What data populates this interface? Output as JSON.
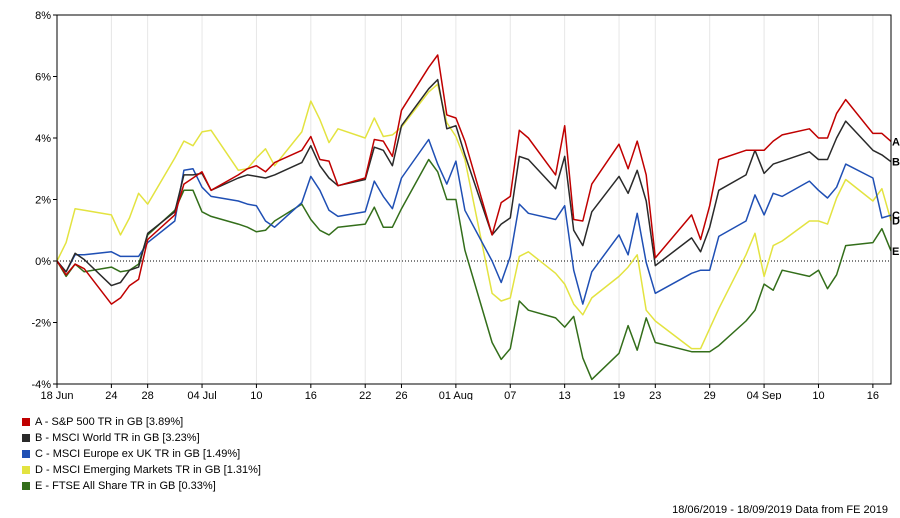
{
  "chart_data": {
    "type": "line",
    "ylim": [
      -4,
      8
    ],
    "yticks": [
      -4,
      -2,
      0,
      2,
      4,
      6,
      8
    ],
    "ytick_labels": [
      "-4%",
      "-2%",
      "0%",
      "2%",
      "4%",
      "6%",
      "8%"
    ],
    "xlim": [
      "2019-06-18",
      "2019-09-18"
    ],
    "xticks": [
      {
        "date": "2019-06-18",
        "label": "18 Jun"
      },
      {
        "date": "2019-06-24",
        "label": "24"
      },
      {
        "date": "2019-06-28",
        "label": "28"
      },
      {
        "date": "2019-07-04",
        "label": "04 Jul"
      },
      {
        "date": "2019-07-10",
        "label": "10"
      },
      {
        "date": "2019-07-16",
        "label": "16"
      },
      {
        "date": "2019-07-22",
        "label": "22"
      },
      {
        "date": "2019-07-26",
        "label": "26"
      },
      {
        "date": "2019-08-01",
        "label": "01 Aug"
      },
      {
        "date": "2019-08-07",
        "label": "07"
      },
      {
        "date": "2019-08-13",
        "label": "13"
      },
      {
        "date": "2019-08-19",
        "label": "19"
      },
      {
        "date": "2019-08-23",
        "label": "23"
      },
      {
        "date": "2019-08-29",
        "label": "29"
      },
      {
        "date": "2019-09-04",
        "label": "04 Sep"
      },
      {
        "date": "2019-09-10",
        "label": "10"
      },
      {
        "date": "2019-09-16",
        "label": "16"
      }
    ],
    "zero_line": "dotted",
    "dates": [
      "2019-06-18",
      "2019-06-19",
      "2019-06-20",
      "2019-06-21",
      "2019-06-24",
      "2019-06-25",
      "2019-06-26",
      "2019-06-27",
      "2019-06-28",
      "2019-07-01",
      "2019-07-02",
      "2019-07-03",
      "2019-07-04",
      "2019-07-05",
      "2019-07-08",
      "2019-07-09",
      "2019-07-10",
      "2019-07-11",
      "2019-07-12",
      "2019-07-15",
      "2019-07-16",
      "2019-07-17",
      "2019-07-18",
      "2019-07-19",
      "2019-07-22",
      "2019-07-23",
      "2019-07-24",
      "2019-07-25",
      "2019-07-26",
      "2019-07-29",
      "2019-07-30",
      "2019-07-31",
      "2019-08-01",
      "2019-08-02",
      "2019-08-05",
      "2019-08-06",
      "2019-08-07",
      "2019-08-08",
      "2019-08-09",
      "2019-08-12",
      "2019-08-13",
      "2019-08-14",
      "2019-08-15",
      "2019-08-16",
      "2019-08-19",
      "2019-08-20",
      "2019-08-21",
      "2019-08-22",
      "2019-08-23",
      "2019-08-27",
      "2019-08-28",
      "2019-08-29",
      "2019-08-30",
      "2019-09-02",
      "2019-09-03",
      "2019-09-04",
      "2019-09-05",
      "2019-09-06",
      "2019-09-09",
      "2019-09-10",
      "2019-09-11",
      "2019-09-12",
      "2019-09-13",
      "2019-09-16",
      "2019-09-17",
      "2019-09-18"
    ],
    "series": [
      {
        "name": "S&P 500 TR in GB",
        "letter": "A",
        "final": "3.89%",
        "color": "#c00000",
        "values": [
          0,
          -0.45,
          -0.1,
          -0.25,
          -1.4,
          -1.2,
          -0.8,
          -0.6,
          0.7,
          1.5,
          2.5,
          2.7,
          2.9,
          2.3,
          2.8,
          3.0,
          3.1,
          2.9,
          3.2,
          3.6,
          4.05,
          3.3,
          3.25,
          2.45,
          2.7,
          3.95,
          3.9,
          3.4,
          4.9,
          6.3,
          6.7,
          4.75,
          4.65,
          3.9,
          0.85,
          1.9,
          2.1,
          4.25,
          4.0,
          2.8,
          4.4,
          1.35,
          1.3,
          2.5,
          3.8,
          3.0,
          3.9,
          2.8,
          0.1,
          1.5,
          0.7,
          1.8,
          3.3,
          3.6,
          3.6,
          3.6,
          3.9,
          4.1,
          4.3,
          4.0,
          4.0,
          4.8,
          5.25,
          4.15,
          4.15,
          3.89
        ]
      },
      {
        "name": "MSCI World TR in GB",
        "letter": "B",
        "final": "3.23%",
        "color": "#2a2a2a",
        "values": [
          0,
          -0.35,
          0.25,
          0.05,
          -0.8,
          -0.7,
          -0.3,
          -0.2,
          0.9,
          1.6,
          2.8,
          2.8,
          2.85,
          2.3,
          2.7,
          2.8,
          2.75,
          2.7,
          2.8,
          3.2,
          3.75,
          3.1,
          2.7,
          2.45,
          2.65,
          3.7,
          3.6,
          3.1,
          4.4,
          5.6,
          5.9,
          4.3,
          4.4,
          3.45,
          0.85,
          1.2,
          1.4,
          3.4,
          3.3,
          2.35,
          3.4,
          1.0,
          0.5,
          1.6,
          2.75,
          2.2,
          2.95,
          1.95,
          -0.15,
          0.75,
          0.3,
          1.1,
          2.3,
          2.8,
          3.6,
          2.85,
          3.15,
          3.25,
          3.55,
          3.3,
          3.3,
          4.0,
          4.55,
          3.6,
          3.45,
          3.23
        ]
      },
      {
        "name": "MSCI Europe ex UK TR in GB",
        "letter": "C",
        "final": "1.49%",
        "color": "#1f4fb4",
        "values": [
          0,
          -0.35,
          0.2,
          0.2,
          0.3,
          0.15,
          0.15,
          0.15,
          0.6,
          1.3,
          2.95,
          3.0,
          2.4,
          2.1,
          1.95,
          1.85,
          1.8,
          1.3,
          1.1,
          1.9,
          2.75,
          2.3,
          1.65,
          1.45,
          1.6,
          2.6,
          2.1,
          1.7,
          2.7,
          3.95,
          3.15,
          2.5,
          3.25,
          1.65,
          0.0,
          -0.7,
          0.15,
          1.85,
          1.55,
          1.35,
          1.8,
          -0.3,
          -1.4,
          -0.35,
          0.85,
          0.2,
          1.55,
          -0.05,
          -1.05,
          -0.4,
          -0.3,
          -0.3,
          0.8,
          1.3,
          2.15,
          1.5,
          2.2,
          2.1,
          2.6,
          2.3,
          2.05,
          2.4,
          3.15,
          2.7,
          1.4,
          1.49
        ]
      },
      {
        "name": "MSCI Emerging Markets TR in GB",
        "letter": "D",
        "final": "1.31%",
        "color": "#e3e340",
        "values": [
          0,
          0.6,
          1.7,
          1.65,
          1.5,
          0.85,
          1.4,
          2.2,
          1.85,
          3.35,
          3.9,
          3.75,
          4.2,
          4.25,
          2.95,
          3.0,
          3.35,
          3.65,
          3.1,
          4.2,
          5.2,
          4.6,
          3.85,
          4.3,
          4.0,
          4.65,
          4.05,
          4.1,
          4.35,
          5.5,
          5.75,
          4.5,
          4.05,
          3.3,
          -1.05,
          -1.3,
          -1.2,
          0.15,
          0.3,
          -0.4,
          -0.75,
          -1.4,
          -1.75,
          -1.2,
          -0.5,
          -0.2,
          0.2,
          -1.6,
          -1.95,
          -2.85,
          -2.85,
          -2.2,
          -1.55,
          0.2,
          0.9,
          -0.5,
          0.5,
          0.65,
          1.3,
          1.3,
          1.2,
          2.05,
          2.65,
          1.95,
          2.35,
          1.31
        ]
      },
      {
        "name": "FTSE All Share TR in GB",
        "letter": "E",
        "final": "0.33%",
        "color": "#336e1a",
        "values": [
          0,
          -0.5,
          -0.1,
          -0.35,
          -0.2,
          -0.35,
          -0.3,
          -0.1,
          0.85,
          1.65,
          2.3,
          2.3,
          1.6,
          1.45,
          1.2,
          1.1,
          0.95,
          1.0,
          1.3,
          1.85,
          1.35,
          1.0,
          0.85,
          1.1,
          1.2,
          1.75,
          1.1,
          1.1,
          1.7,
          3.3,
          2.9,
          2.0,
          2.0,
          0.35,
          -2.65,
          -3.2,
          -2.85,
          -1.3,
          -1.6,
          -1.85,
          -2.15,
          -1.8,
          -3.15,
          -3.85,
          -3.0,
          -2.1,
          -2.9,
          -1.85,
          -2.65,
          -2.95,
          -2.95,
          -2.95,
          -2.75,
          -1.95,
          -1.6,
          -0.75,
          -0.95,
          -0.3,
          -0.5,
          -0.3,
          -0.9,
          -0.45,
          0.5,
          0.6,
          1.05,
          0.33
        ]
      }
    ]
  },
  "legend": [
    {
      "text": "A - S&P 500 TR in GB [3.89%]",
      "color": "#c00000"
    },
    {
      "text": "B - MSCI World TR in GB [3.23%]",
      "color": "#2a2a2a"
    },
    {
      "text": "C - MSCI Europe ex UK TR in GB [1.49%]",
      "color": "#1f4fb4"
    },
    {
      "text": "D - MSCI Emerging Markets TR in GB [1.31%]",
      "color": "#e3e340"
    },
    {
      "text": "E - FTSE All Share TR in GB [0.33%]",
      "color": "#336e1a"
    }
  ],
  "footer": "18/06/2019 - 18/09/2019 Data from FE 2019"
}
